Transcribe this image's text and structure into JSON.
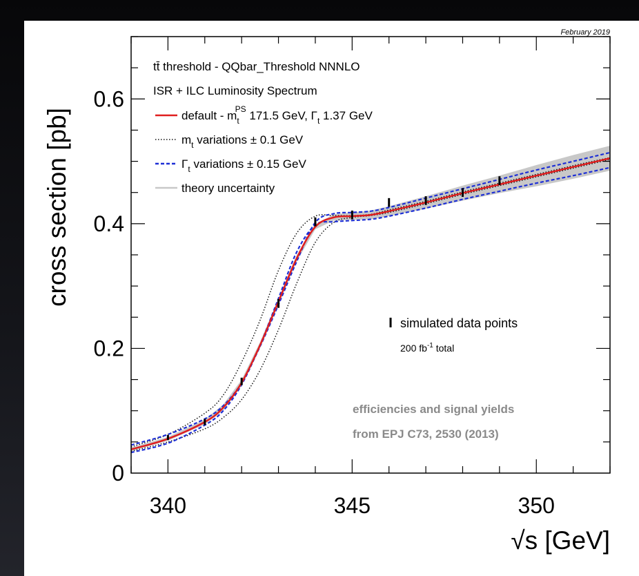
{
  "date_stamp": "February 2019",
  "colors": {
    "default": "#e01e1e",
    "mt_variation": "#111111",
    "gamma_variation": "#1d2fd6",
    "theory_band": "#c8c8c8",
    "data_points": "#000000",
    "annotation_gray": "#8a8a8a"
  },
  "legend": {
    "title_main": "tt̄ threshold - QQbar_Threshold NNNLO",
    "title_sub": "ISR + ILC Luminosity Spectrum",
    "default": {
      "prefix": "default - m",
      "sub": "t",
      "sup": "PS",
      "mid": " 171.5 GeV, Γ",
      "sub2": "t",
      "suffix": " 1.37 GeV"
    },
    "mt": {
      "prefix": "m",
      "sub": "t",
      "suffix": " variations ± 0.1 GeV"
    },
    "gamma": {
      "prefix": "Γ",
      "sub": "t",
      "suffix": " variations ± 0.15 GeV"
    },
    "theory": "theory uncertainty"
  },
  "annotations": {
    "data_points": "simulated data points",
    "lumi": {
      "prefix": "200 fb",
      "sup": "-1",
      "suffix": " total"
    },
    "efficiency_line1": "efficiencies and signal yields",
    "efficiency_line2": "from EPJ C73, 2530 (2013)"
  },
  "chart_data": {
    "type": "line",
    "xlabel": "√s [GeV]",
    "ylabel": "cross section [pb]",
    "xlim": [
      339,
      352
    ],
    "ylim": [
      0,
      0.7
    ],
    "x_ticks": [
      "340",
      "345",
      "350"
    ],
    "y_ticks": [
      "0",
      "0.2",
      "0.4",
      "0.6"
    ],
    "legend_position": "top-left",
    "x": [
      339,
      340,
      341,
      341.5,
      342,
      342.5,
      343,
      343.5,
      344,
      344.5,
      345,
      345.5,
      346,
      347,
      348,
      349,
      350,
      351,
      352
    ],
    "series": [
      {
        "name": "default",
        "values": [
          0.038,
          0.055,
          0.082,
          0.105,
          0.145,
          0.205,
          0.275,
          0.345,
          0.395,
          0.41,
          0.412,
          0.414,
          0.42,
          0.434,
          0.449,
          0.463,
          0.477,
          0.491,
          0.505
        ]
      },
      {
        "name": "m_t variations upper",
        "values": [
          0.042,
          0.062,
          0.096,
          0.125,
          0.178,
          0.245,
          0.325,
          0.385,
          0.412,
          0.413,
          0.413,
          0.415,
          0.422,
          0.436,
          0.451,
          0.465,
          0.479,
          0.493,
          0.506
        ]
      },
      {
        "name": "m_t variations lower",
        "values": [
          0.035,
          0.05,
          0.071,
          0.089,
          0.118,
          0.165,
          0.23,
          0.305,
          0.37,
          0.402,
          0.41,
          0.413,
          0.418,
          0.432,
          0.447,
          0.461,
          0.475,
          0.489,
          0.503
        ]
      },
      {
        "name": "Γ_t variations upper",
        "values": [
          0.045,
          0.062,
          0.087,
          0.108,
          0.145,
          0.203,
          0.27,
          0.34,
          0.402,
          0.416,
          0.418,
          0.42,
          0.426,
          0.441,
          0.456,
          0.471,
          0.486,
          0.5,
          0.514
        ]
      },
      {
        "name": "Γ_t variations lower",
        "values": [
          0.033,
          0.048,
          0.077,
          0.1,
          0.142,
          0.205,
          0.28,
          0.355,
          0.398,
          0.403,
          0.405,
          0.407,
          0.412,
          0.425,
          0.439,
          0.452,
          0.465,
          0.477,
          0.49
        ]
      },
      {
        "name": "theory uncertainty upper",
        "values": [
          0.041,
          0.058,
          0.086,
          0.11,
          0.15,
          0.21,
          0.28,
          0.35,
          0.399,
          0.415,
          0.418,
          0.421,
          0.428,
          0.444,
          0.461,
          0.477,
          0.494,
          0.51,
          0.525
        ]
      },
      {
        "name": "theory uncertainty lower",
        "values": [
          0.035,
          0.052,
          0.078,
          0.1,
          0.14,
          0.2,
          0.27,
          0.34,
          0.391,
          0.405,
          0.406,
          0.407,
          0.412,
          0.424,
          0.437,
          0.449,
          0.46,
          0.472,
          0.485
        ]
      }
    ],
    "data_points": {
      "name": "simulated data points",
      "x": [
        340,
        341,
        342,
        343,
        344,
        345,
        346,
        347,
        348,
        349
      ],
      "y": [
        0.057,
        0.082,
        0.147,
        0.272,
        0.403,
        0.414,
        0.434,
        0.437,
        0.45,
        0.469
      ],
      "err": [
        0.004,
        0.005,
        0.006,
        0.007,
        0.007,
        0.007,
        0.007,
        0.007,
        0.007,
        0.007
      ]
    }
  }
}
